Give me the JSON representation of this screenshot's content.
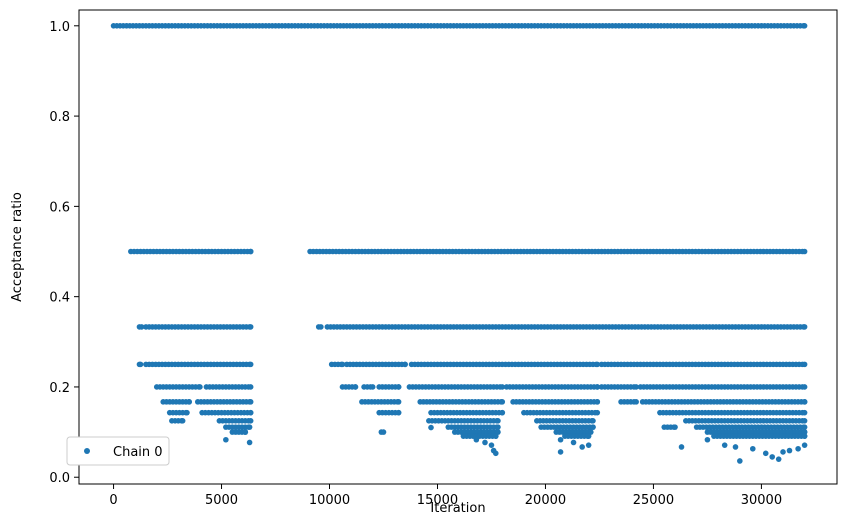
{
  "chart_data": {
    "type": "scatter",
    "xlabel": "Iteration",
    "ylabel": "Acceptance ratio",
    "xlim": [
      -1600,
      33500
    ],
    "ylim": [
      -0.015,
      1.035
    ],
    "xticks": [
      0,
      5000,
      10000,
      15000,
      20000,
      25000,
      30000
    ],
    "yticks": [
      0.0,
      0.2,
      0.4,
      0.6,
      0.8,
      1.0
    ],
    "ytick_labels": [
      "0.0",
      "0.2",
      "0.4",
      "0.6",
      "0.8",
      "1.0"
    ],
    "grid": false,
    "legend": {
      "position": "lower-left",
      "entries": [
        "Chain 0"
      ]
    },
    "marker_color": "#1f77b4",
    "series": [
      {
        "name": "Chain 0",
        "levels": [
          {
            "y": 1.0,
            "ranges": [
              [
                0,
                32000
              ]
            ]
          },
          {
            "y": 0.5,
            "ranges": [
              [
                800,
                6350
              ],
              [
                9100,
                32000
              ]
            ]
          },
          {
            "y": 0.333,
            "ranges": [
              [
                1200,
                1300
              ],
              [
                1500,
                6350
              ],
              [
                9500,
                9600
              ],
              [
                9900,
                32000
              ]
            ]
          },
          {
            "y": 0.25,
            "ranges": [
              [
                1200,
                1250
              ],
              [
                1500,
                6350
              ],
              [
                10100,
                10600
              ],
              [
                10800,
                13500
              ],
              [
                13800,
                22400
              ],
              [
                22600,
                32000
              ]
            ]
          },
          {
            "y": 0.2,
            "ranges": [
              [
                2000,
                4000
              ],
              [
                4300,
                6350
              ],
              [
                10600,
                11200
              ],
              [
                11600,
                12000
              ],
              [
                12300,
                13200
              ],
              [
                13700,
                18000
              ],
              [
                18200,
                22400
              ],
              [
                22600,
                24200
              ],
              [
                24400,
                32000
              ]
            ]
          },
          {
            "y": 0.167,
            "ranges": [
              [
                2300,
                3500
              ],
              [
                3900,
                6350
              ],
              [
                11500,
                13200
              ],
              [
                14200,
                18000
              ],
              [
                18500,
                22400
              ],
              [
                23500,
                24200
              ],
              [
                24500,
                32000
              ]
            ]
          },
          {
            "y": 0.143,
            "ranges": [
              [
                2600,
                3400
              ],
              [
                4100,
                6350
              ],
              [
                12300,
                13200
              ],
              [
                14700,
                18000
              ],
              [
                19000,
                22400
              ],
              [
                25300,
                32000
              ]
            ]
          },
          {
            "y": 0.125,
            "ranges": [
              [
                2700,
                3200
              ],
              [
                4900,
                6350
              ],
              [
                14600,
                17800
              ],
              [
                19600,
                22200
              ],
              [
                26500,
                32000
              ]
            ]
          },
          {
            "y": 0.111,
            "ranges": [
              [
                5200,
                6300
              ],
              [
                15500,
                17800
              ],
              [
                19800,
                22200
              ],
              [
                25500,
                26000
              ],
              [
                27000,
                32000
              ]
            ]
          },
          {
            "y": 0.1,
            "ranges": [
              [
                5500,
                6100
              ],
              [
                12400,
                12500
              ],
              [
                15800,
                17800
              ],
              [
                20500,
                22100
              ],
              [
                27500,
                32000
              ]
            ]
          },
          {
            "y": 0.091,
            "ranges": [
              [
                16200,
                17700
              ],
              [
                20900,
                22000
              ],
              [
                27800,
                32000
              ]
            ]
          }
        ],
        "sparse_points": [
          {
            "x": 5200,
            "y": 0.083
          },
          {
            "x": 6300,
            "y": 0.077
          },
          {
            "x": 14700,
            "y": 0.11
          },
          {
            "x": 16800,
            "y": 0.083
          },
          {
            "x": 17200,
            "y": 0.077
          },
          {
            "x": 17500,
            "y": 0.071
          },
          {
            "x": 17600,
            "y": 0.059
          },
          {
            "x": 17700,
            "y": 0.053
          },
          {
            "x": 20700,
            "y": 0.083
          },
          {
            "x": 20700,
            "y": 0.056
          },
          {
            "x": 21300,
            "y": 0.077
          },
          {
            "x": 21700,
            "y": 0.067
          },
          {
            "x": 22000,
            "y": 0.071
          },
          {
            "x": 26300,
            "y": 0.067
          },
          {
            "x": 27500,
            "y": 0.083
          },
          {
            "x": 28300,
            "y": 0.071
          },
          {
            "x": 28800,
            "y": 0.067
          },
          {
            "x": 29000,
            "y": 0.036
          },
          {
            "x": 29600,
            "y": 0.063
          },
          {
            "x": 30200,
            "y": 0.053
          },
          {
            "x": 30500,
            "y": 0.045
          },
          {
            "x": 30800,
            "y": 0.04
          },
          {
            "x": 31000,
            "y": 0.056
          },
          {
            "x": 31300,
            "y": 0.059
          },
          {
            "x": 31700,
            "y": 0.063
          },
          {
            "x": 32000,
            "y": 0.071
          }
        ]
      }
    ]
  }
}
